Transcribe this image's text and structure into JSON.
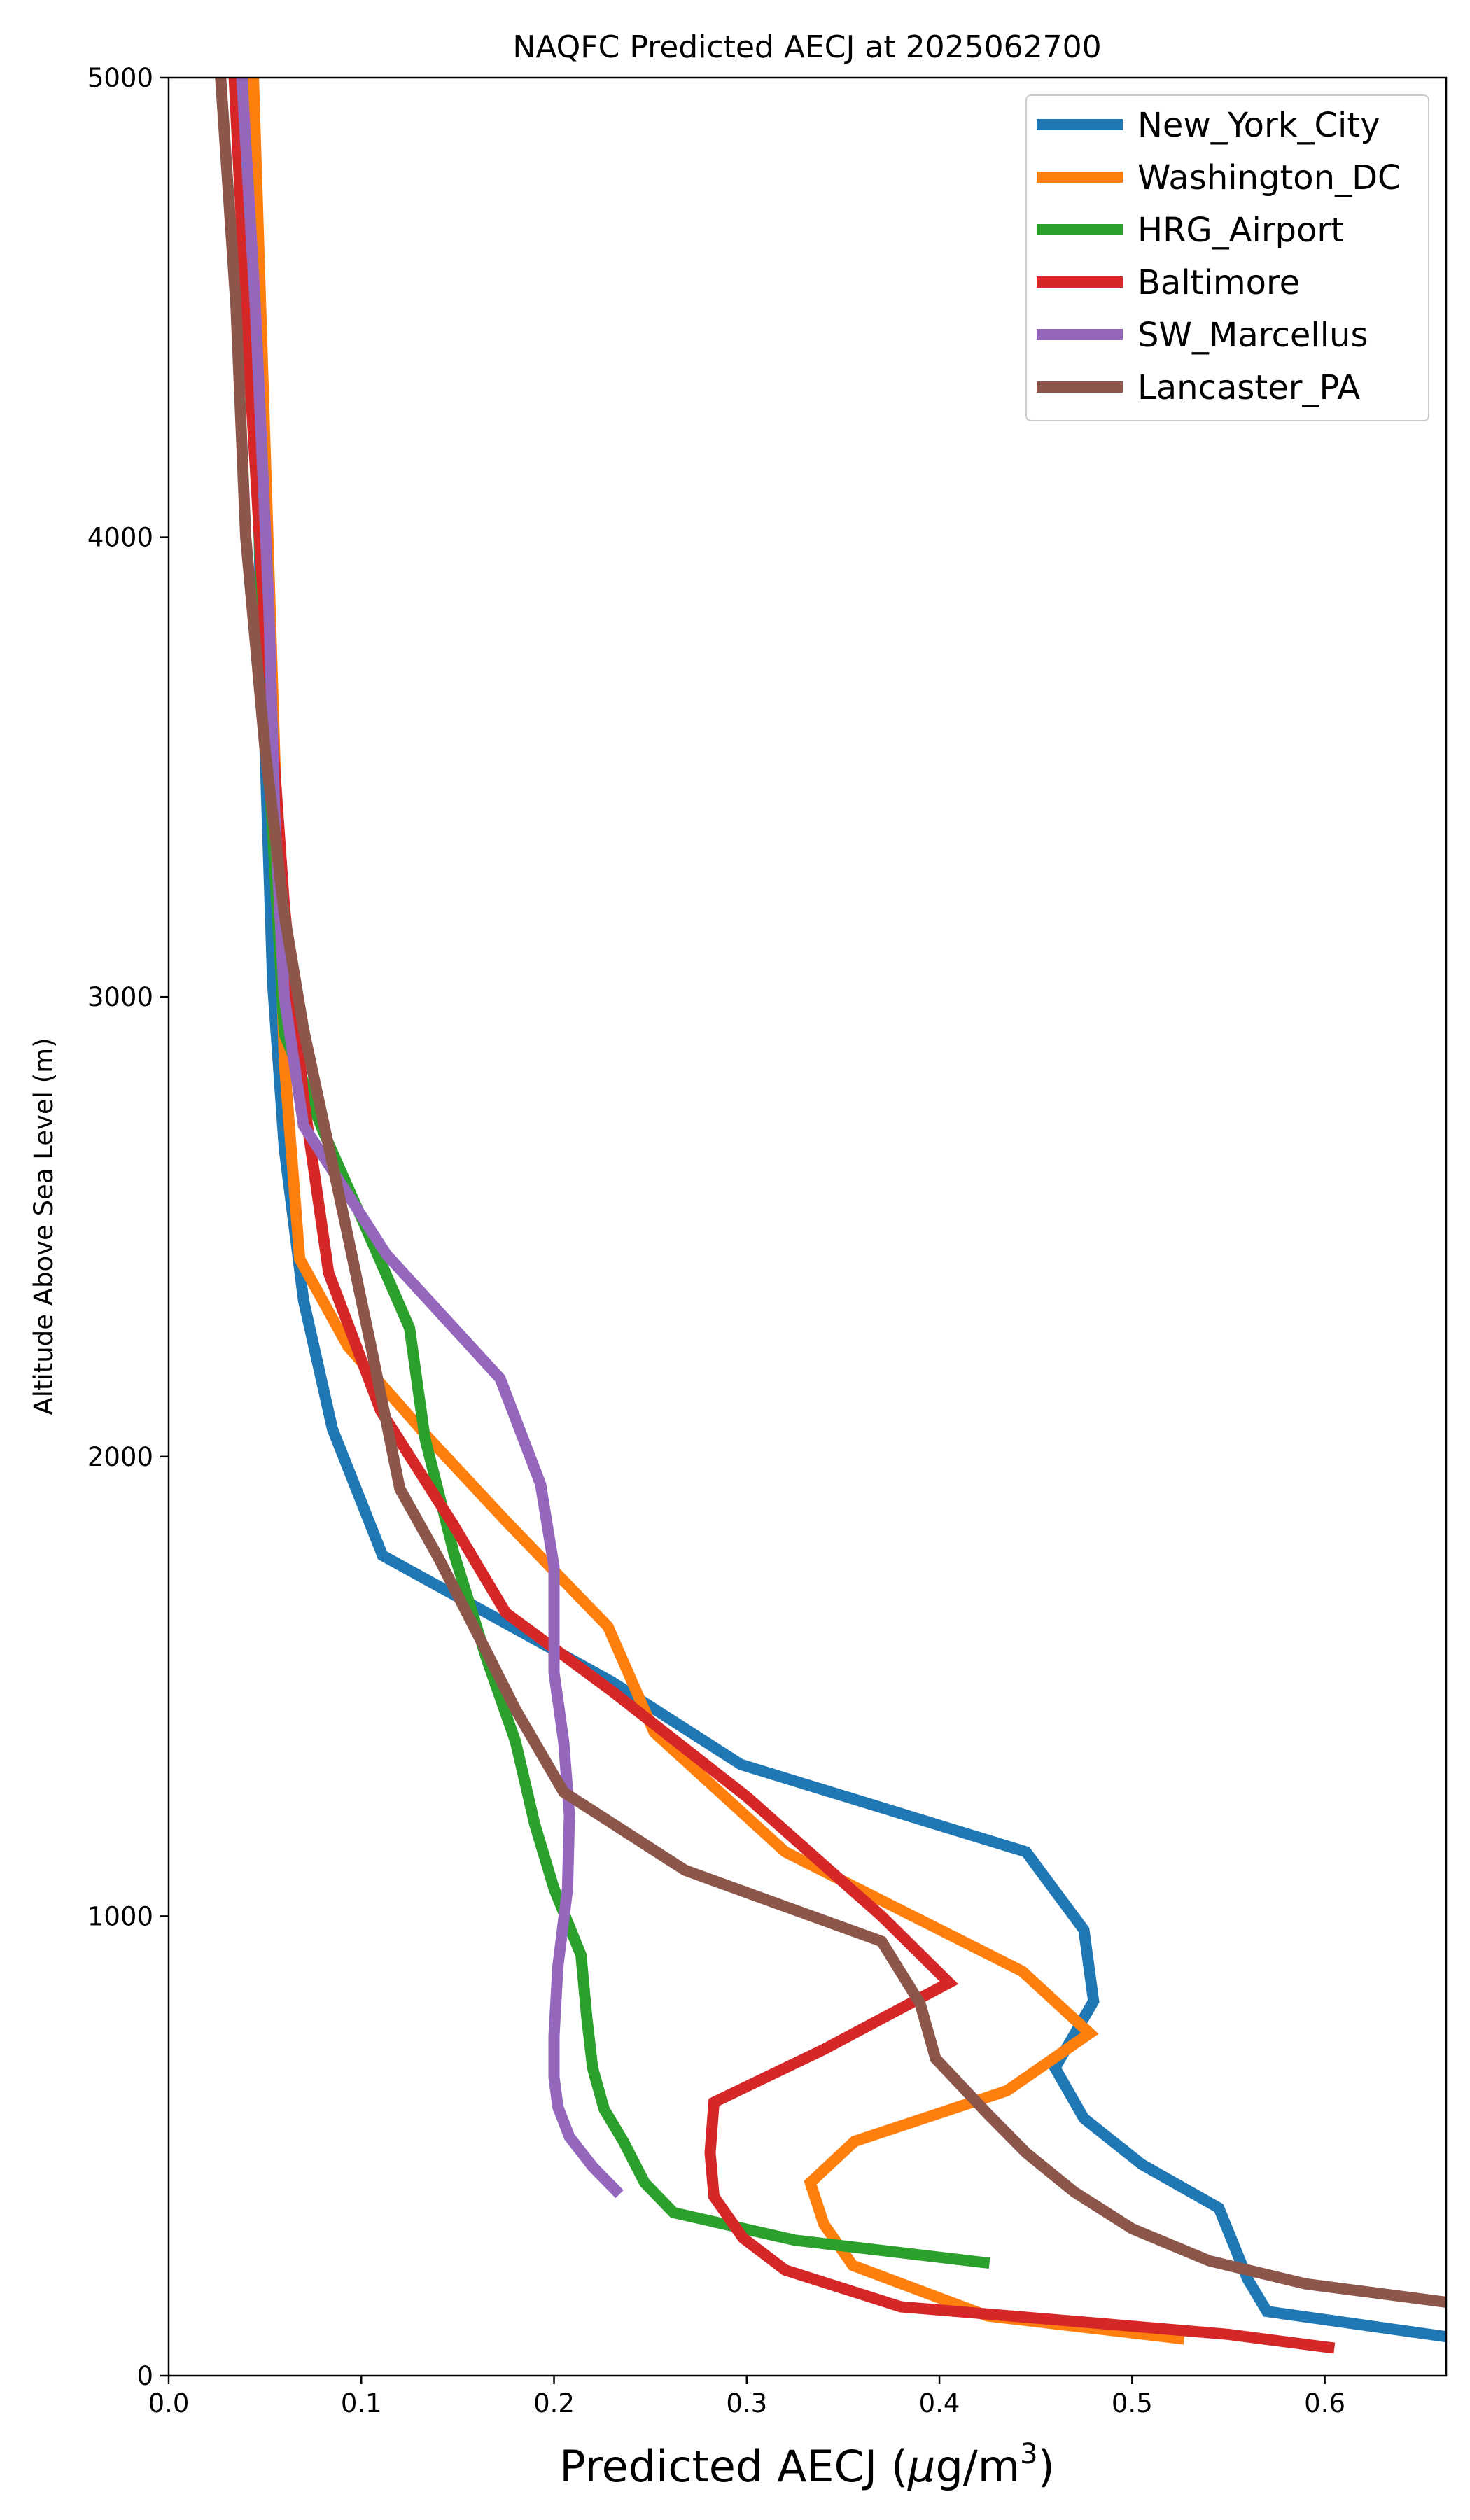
{
  "chart_data": {
    "type": "line",
    "title": "NAQFC Predicted AECJ at 2025062700",
    "xlabel_main": "Predicted AECJ (",
    "xlabel_mu": "μ",
    "xlabel_unit": "g/m",
    "xlabel_sup": "3",
    "xlabel_close": ")",
    "ylabel": "Altitude Above Sea Level (m)",
    "xlim": [
      0,
      0.663
    ],
    "ylim": [
      0,
      5000
    ],
    "xticks": [
      0.0,
      0.1,
      0.2,
      0.3,
      0.4,
      0.5,
      0.6
    ],
    "xtick_labels": [
      "0.0",
      "0.1",
      "0.2",
      "0.3",
      "0.4",
      "0.5",
      "0.6"
    ],
    "yticks": [
      0,
      1000,
      2000,
      3000,
      4000,
      5000
    ],
    "ytick_labels": [
      "0",
      "1000",
      "2000",
      "3000",
      "4000",
      "5000"
    ],
    "grid": false,
    "legend_position": "top-right",
    "series": [
      {
        "name": "New_York_City",
        "color": "#1f77b4",
        "points": [
          [
            0.663,
            85
          ],
          [
            0.57,
            140
          ],
          [
            0.56,
            210
          ],
          [
            0.545,
            365
          ],
          [
            0.505,
            460
          ],
          [
            0.475,
            560
          ],
          [
            0.46,
            670
          ],
          [
            0.48,
            815
          ],
          [
            0.475,
            970
          ],
          [
            0.445,
            1140
          ],
          [
            0.297,
            1330
          ],
          [
            0.23,
            1510
          ],
          [
            0.111,
            1785
          ],
          [
            0.085,
            2060
          ],
          [
            0.07,
            2340
          ],
          [
            0.06,
            2670
          ],
          [
            0.054,
            3030
          ],
          [
            0.048,
            3800
          ],
          [
            0.042,
            5000
          ]
        ]
      },
      {
        "name": "Washington_DC",
        "color": "#ff7f0e",
        "points": [
          [
            0.527,
            80
          ],
          [
            0.425,
            130
          ],
          [
            0.355,
            240
          ],
          [
            0.34,
            330
          ],
          [
            0.333,
            420
          ],
          [
            0.356,
            510
          ],
          [
            0.435,
            620
          ],
          [
            0.478,
            745
          ],
          [
            0.443,
            880
          ],
          [
            0.32,
            1140
          ],
          [
            0.252,
            1400
          ],
          [
            0.228,
            1630
          ],
          [
            0.175,
            1860
          ],
          [
            0.135,
            2040
          ],
          [
            0.093,
            2240
          ],
          [
            0.068,
            2430
          ],
          [
            0.06,
            2860
          ],
          [
            0.053,
            3800
          ],
          [
            0.044,
            5000
          ]
        ]
      },
      {
        "name": "HRG_Airport",
        "color": "#2ca02c",
        "points": [
          [
            0.426,
            245
          ],
          [
            0.325,
            295
          ],
          [
            0.262,
            355
          ],
          [
            0.247,
            420
          ],
          [
            0.236,
            510
          ],
          [
            0.226,
            580
          ],
          [
            0.22,
            670
          ],
          [
            0.217,
            780
          ],
          [
            0.214,
            915
          ],
          [
            0.2,
            1060
          ],
          [
            0.19,
            1200
          ],
          [
            0.18,
            1380
          ],
          [
            0.165,
            1560
          ],
          [
            0.148,
            1790
          ],
          [
            0.133,
            2040
          ],
          [
            0.125,
            2280
          ],
          [
            0.1,
            2520
          ],
          [
            0.08,
            2710
          ],
          [
            0.06,
            2920
          ],
          [
            0.052,
            3500
          ],
          [
            0.044,
            4300
          ],
          [
            0.036,
            5000
          ]
        ]
      },
      {
        "name": "Baltimore",
        "color": "#d62728",
        "points": [
          [
            0.605,
            60
          ],
          [
            0.55,
            90
          ],
          [
            0.48,
            115
          ],
          [
            0.38,
            150
          ],
          [
            0.32,
            230
          ],
          [
            0.298,
            300
          ],
          [
            0.283,
            390
          ],
          [
            0.281,
            485
          ],
          [
            0.283,
            595
          ],
          [
            0.34,
            710
          ],
          [
            0.405,
            855
          ],
          [
            0.37,
            1000
          ],
          [
            0.3,
            1260
          ],
          [
            0.23,
            1490
          ],
          [
            0.175,
            1660
          ],
          [
            0.148,
            1850
          ],
          [
            0.11,
            2100
          ],
          [
            0.083,
            2400
          ],
          [
            0.07,
            2780
          ],
          [
            0.06,
            3200
          ],
          [
            0.05,
            3800
          ],
          [
            0.04,
            4500
          ],
          [
            0.034,
            5000
          ]
        ]
      },
      {
        "name": "SW_Marcellus",
        "color": "#9467bd",
        "points": [
          [
            0.234,
            395
          ],
          [
            0.22,
            455
          ],
          [
            0.208,
            520
          ],
          [
            0.202,
            585
          ],
          [
            0.2,
            650
          ],
          [
            0.2,
            740
          ],
          [
            0.202,
            890
          ],
          [
            0.207,
            1060
          ],
          [
            0.208,
            1220
          ],
          [
            0.205,
            1380
          ],
          [
            0.2,
            1530
          ],
          [
            0.2,
            1760
          ],
          [
            0.193,
            1940
          ],
          [
            0.172,
            2170
          ],
          [
            0.113,
            2440
          ],
          [
            0.09,
            2590
          ],
          [
            0.07,
            2720
          ],
          [
            0.06,
            3000
          ],
          [
            0.055,
            3400
          ],
          [
            0.052,
            3850
          ],
          [
            0.045,
            4500
          ],
          [
            0.038,
            5000
          ]
        ]
      },
      {
        "name": "Lancaster_PA",
        "color": "#8c564b",
        "points": [
          [
            0.663,
            160
          ],
          [
            0.59,
            200
          ],
          [
            0.54,
            250
          ],
          [
            0.5,
            320
          ],
          [
            0.47,
            400
          ],
          [
            0.445,
            485
          ],
          [
            0.425,
            570
          ],
          [
            0.398,
            690
          ],
          [
            0.39,
            810
          ],
          [
            0.37,
            945
          ],
          [
            0.268,
            1100
          ],
          [
            0.205,
            1270
          ],
          [
            0.18,
            1450
          ],
          [
            0.162,
            1600
          ],
          [
            0.14,
            1780
          ],
          [
            0.12,
            1930
          ],
          [
            0.105,
            2240
          ],
          [
            0.092,
            2500
          ],
          [
            0.07,
            2930
          ],
          [
            0.06,
            3180
          ],
          [
            0.05,
            3540
          ],
          [
            0.04,
            4000
          ],
          [
            0.035,
            4500
          ],
          [
            0.027,
            5000
          ]
        ]
      }
    ]
  }
}
